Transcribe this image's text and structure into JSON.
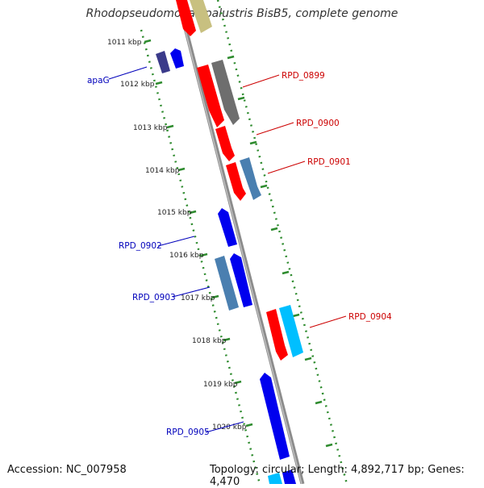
{
  "title": "Rhodopseudomonas palustris BisB5, complete genome",
  "footer": {
    "accession": "Accession: NC_007958",
    "topology": "Topology: circular; Length: 4,892,717 bp; Genes: 4,470"
  },
  "ticks": [
    "1011 kbp",
    "1012 kbp",
    "1013 kbp",
    "1014 kbp",
    "1015 kbp",
    "1016 kbp",
    "1017 kbp",
    "1018 kbp",
    "1019 kbp",
    "1020 kbp"
  ],
  "gene_labels": {
    "apaG": "apaG",
    "rpd0899": "RPD_0899",
    "rpd0900": "RPD_0900",
    "rpd0901": "RPD_0901",
    "rpd0902": "RPD_0902",
    "rpd0903": "RPD_0903",
    "rpd0904": "RPD_0904",
    "rpd0905": "RPD_0905"
  },
  "colors": {
    "backbone": "#8c8c8c",
    "ruler": "#2e8b2e",
    "forward_label": "#0000bb",
    "reverse_label": "#cc0000",
    "red_gene": "#ff0000",
    "gray_gene": "#6e6e6e",
    "steelblue_gene": "#4a7fb0",
    "blue_gene": "#0000ee",
    "cyan_gene": "#00bfff",
    "navy_gene": "#3a3a8a",
    "khaki_gene": "#c8c080"
  }
}
